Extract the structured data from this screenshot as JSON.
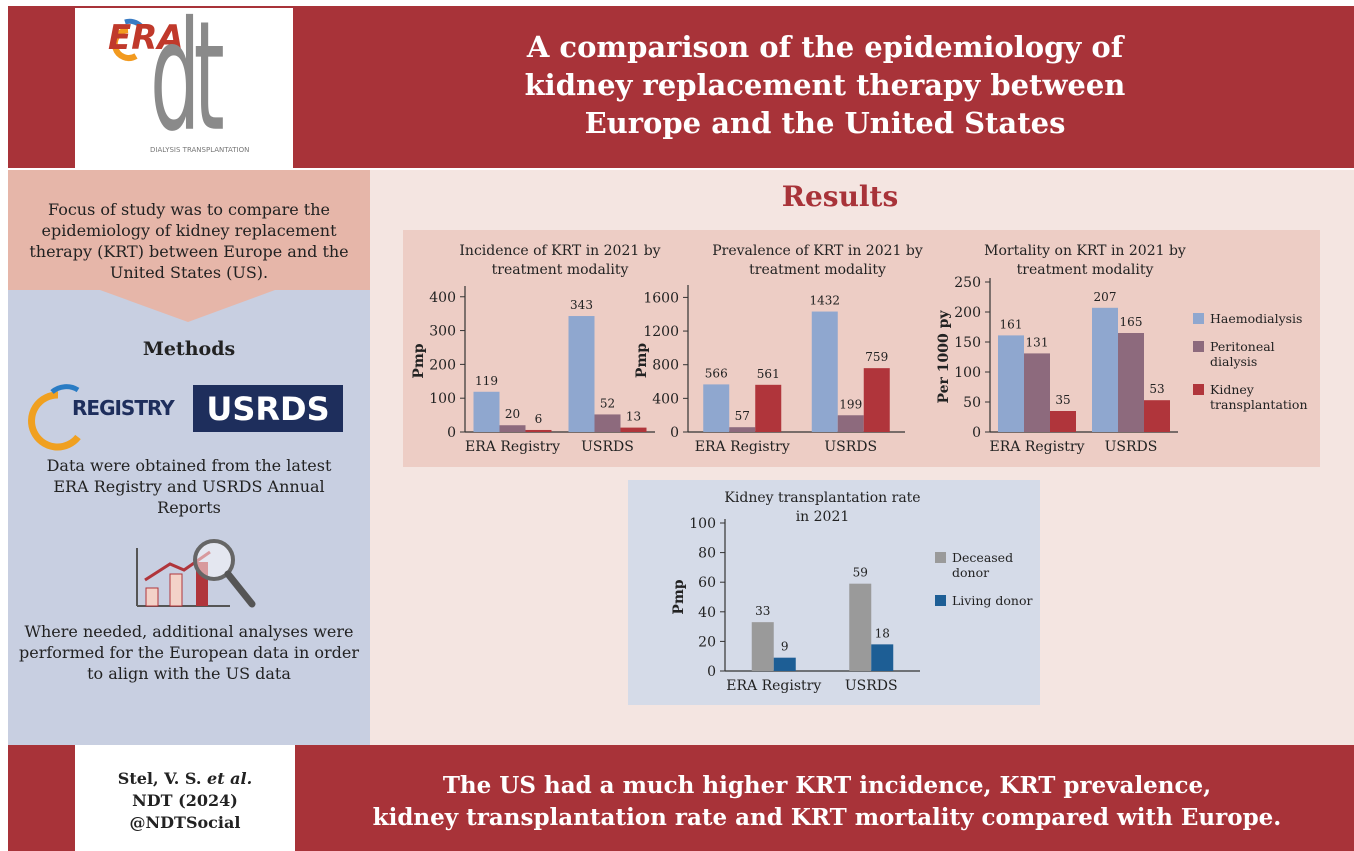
{
  "header": {
    "logo": "ERA",
    "logo_mark": "dt",
    "logo_caption": "DIALYSIS TRANSPLANTATION",
    "title_lines": [
      "A comparison of the epidemiology of",
      "kidney replacement therapy between",
      "Europe and the United States"
    ]
  },
  "sidebar": {
    "focus": "Focus of study was to compare the epidemiology of kidney replacement therapy (KRT) between Europe and the United States (US).",
    "methods": "Methods",
    "logos": [
      "REGISTRY",
      "USRDS"
    ],
    "data_source": "Data were obtained from the latest ERA Registry and USRDS Annual Reports",
    "analyses": "Where needed, additional analyses were performed for the European data in order to align with the US data"
  },
  "results": "Results",
  "chart_data": [
    {
      "type": "bar",
      "title": "Incidence of KRT in 2021 by treatment modality",
      "ylabel": "Pmp",
      "categories": [
        "ERA Registry",
        "USRDS"
      ],
      "series": [
        {
          "name": "Haemodialysis",
          "color": "#8fa7cf",
          "values": [
            119,
            343
          ]
        },
        {
          "name": "Peritoneal dialysis",
          "color": "#8d6a7d",
          "values": [
            20,
            52
          ]
        },
        {
          "name": "Kidney transplantation",
          "color": "#b0353b",
          "values": [
            6,
            13
          ]
        }
      ],
      "ylim": [
        0,
        420
      ],
      "yticks": [
        0,
        100,
        200,
        300,
        400
      ]
    },
    {
      "type": "bar",
      "title": "Prevalence of KRT in 2021 by treatment modality",
      "ylabel": "Pmp",
      "categories": [
        "ERA Registry",
        "USRDS"
      ],
      "series": [
        {
          "name": "Haemodialysis",
          "color": "#8fa7cf",
          "values": [
            566,
            1432
          ]
        },
        {
          "name": "Peritoneal dialysis",
          "color": "#8d6a7d",
          "values": [
            57,
            199
          ]
        },
        {
          "name": "Kidney transplantation",
          "color": "#b0353b",
          "values": [
            561,
            759
          ]
        }
      ],
      "ylim": [
        0,
        1700
      ],
      "yticks": [
        0,
        400,
        800,
        1200,
        1600
      ]
    },
    {
      "type": "bar",
      "title": "Mortality on KRT in 2021 by treatment modality",
      "ylabel": "Per 1000 py",
      "categories": [
        "ERA Registry",
        "USRDS"
      ],
      "series": [
        {
          "name": "Haemodialysis",
          "color": "#8fa7cf",
          "values": [
            161,
            207
          ]
        },
        {
          "name": "Peritoneal dialysis",
          "color": "#8d6a7d",
          "values": [
            131,
            165
          ]
        },
        {
          "name": "Kidney transplantation",
          "color": "#b0353b",
          "values": [
            35,
            53
          ]
        }
      ],
      "ylim": [
        0,
        250
      ],
      "yticks": [
        0,
        50,
        100,
        150,
        200,
        250
      ],
      "legend": "right"
    },
    {
      "type": "bar",
      "title": "Kidney transplantation rate in 2021",
      "ylabel": "Pmp",
      "categories": [
        "ERA Registry",
        "USRDS"
      ],
      "series": [
        {
          "name": "Deceased donor",
          "color": "#9a9a9a",
          "values": [
            33,
            59
          ]
        },
        {
          "name": "Living donor",
          "color": "#1d5e95",
          "values": [
            9,
            18
          ]
        }
      ],
      "ylim": [
        0,
        100
      ],
      "yticks": [
        0,
        20,
        40,
        60,
        80,
        100
      ],
      "legend": "right"
    }
  ],
  "footer": {
    "author": "Stel, V. S.",
    "etal": "et al.",
    "journal": "NDT (2024)",
    "handle": "@NDTSocial",
    "conclusion_lines": [
      "The US had a much higher KRT incidence, KRT prevalence,",
      "kidney transplantation rate and KRT mortality compared with Europe."
    ]
  }
}
